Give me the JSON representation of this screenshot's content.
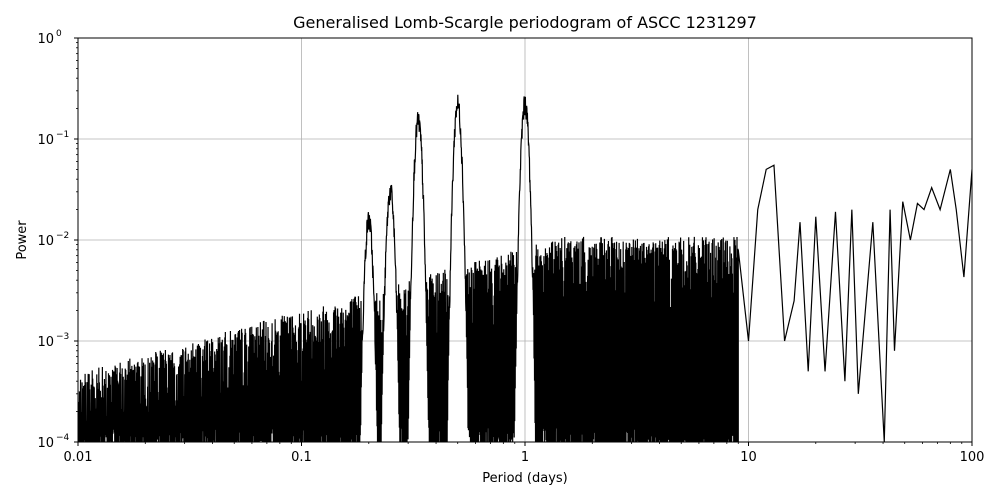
{
  "chart_data": {
    "type": "line",
    "title": "Generalised Lomb-Scargle periodogram of ASCC 1231297",
    "xlabel": "Period (days)",
    "ylabel": "Power",
    "xscale": "log",
    "yscale": "log",
    "xlim": [
      0.01,
      100
    ],
    "ylim": [
      0.0001,
      1
    ],
    "grid": true,
    "line_color": "#000000",
    "x_ticks": [
      {
        "value": 0.01,
        "label": "0.01"
      },
      {
        "value": 0.1,
        "label": "0.1"
      },
      {
        "value": 1,
        "label": "1"
      },
      {
        "value": 10,
        "label": "10"
      },
      {
        "value": 100,
        "label": "100"
      }
    ],
    "y_ticks": [
      {
        "value": 0.0001,
        "base": "10",
        "exp": "−4"
      },
      {
        "value": 0.001,
        "base": "10",
        "exp": "−3"
      },
      {
        "value": 0.01,
        "base": "10",
        "exp": "−2"
      },
      {
        "value": 0.1,
        "base": "10",
        "exp": "−1"
      },
      {
        "value": 1,
        "base": "10",
        "exp": "0"
      }
    ],
    "peaks": [
      {
        "period": 0.2,
        "power": 0.02
      },
      {
        "period": 0.25,
        "power": 0.038
      },
      {
        "period": 0.333,
        "power": 0.19
      },
      {
        "period": 0.5,
        "power": 0.28
      },
      {
        "period": 1.0,
        "power": 0.28
      },
      {
        "period": 12.5,
        "power": 0.055
      },
      {
        "period": 13.2,
        "power": 0.055
      },
      {
        "period": 80,
        "power": 0.05
      }
    ],
    "long_period_curve": [
      [
        9.0,
        0.008
      ],
      [
        10.0,
        0.001
      ],
      [
        11.0,
        0.02
      ],
      [
        12.0,
        0.05
      ],
      [
        13.0,
        0.055
      ],
      [
        14.5,
        0.001
      ],
      [
        16,
        0.0025
      ],
      [
        17,
        0.015
      ],
      [
        18.5,
        0.0005
      ],
      [
        20,
        0.017
      ],
      [
        22,
        0.0005
      ],
      [
        24.5,
        0.019
      ],
      [
        27,
        0.0004
      ],
      [
        29,
        0.02
      ],
      [
        31,
        0.0003
      ],
      [
        36,
        0.015
      ],
      [
        40.5,
        0.0001
      ],
      [
        43,
        0.02
      ],
      [
        45,
        0.0008
      ],
      [
        49,
        0.024
      ],
      [
        53,
        0.01
      ],
      [
        57,
        0.023
      ],
      [
        61,
        0.02
      ],
      [
        66,
        0.033
      ],
      [
        72,
        0.02
      ],
      [
        80,
        0.05
      ],
      [
        85,
        0.02
      ],
      [
        92,
        0.0043
      ],
      [
        100,
        0.05
      ]
    ]
  }
}
